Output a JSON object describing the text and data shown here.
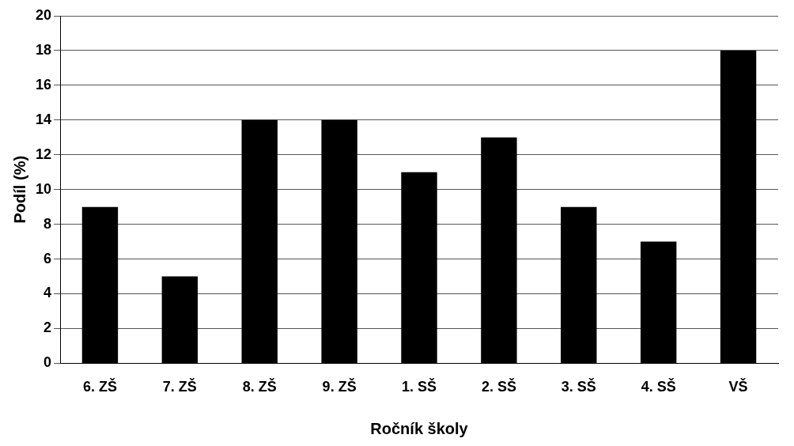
{
  "chart_data": {
    "type": "bar",
    "xlabel": "Ročník školy",
    "ylabel": "Podíl (%)",
    "categories": [
      "6. ZŠ",
      "7. ZŠ",
      "8. ZŠ",
      "9. ZŠ",
      "1. SŠ",
      "2. SŠ",
      "3. SŠ",
      "4. SŠ",
      "VŠ"
    ],
    "values": [
      9,
      5,
      14,
      14,
      11,
      13,
      9,
      7,
      18
    ],
    "color": "#000000",
    "ylim": [
      0,
      20
    ],
    "yticks": [
      0,
      2,
      4,
      6,
      8,
      10,
      12,
      14,
      16,
      18,
      20
    ],
    "grid": "y"
  }
}
